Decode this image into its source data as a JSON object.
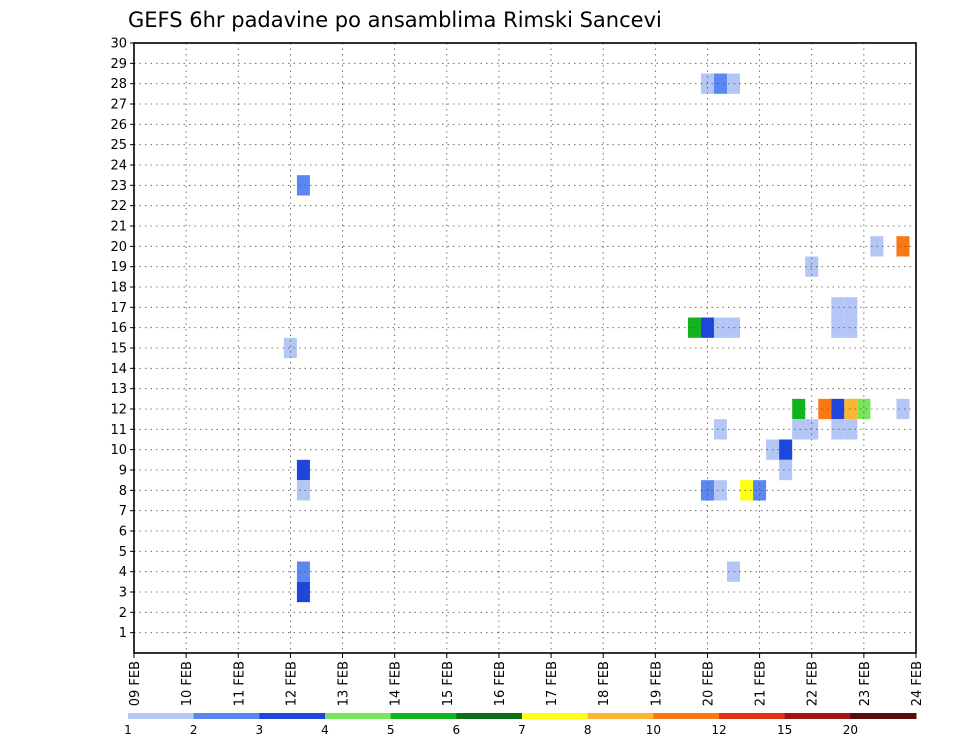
{
  "chart_data": {
    "type": "heatmap",
    "title": "GEFS 6hr padavine po ansamblima Rimski Sancevi",
    "x_tick_labels": [
      "09 FEB",
      "10 FEB",
      "11 FEB",
      "12 FEB",
      "13 FEB",
      "14 FEB",
      "15 FEB",
      "16 FEB",
      "17 FEB",
      "18 FEB",
      "19 FEB",
      "20 FEB",
      "21 FEB",
      "22 FEB",
      "23 FEB",
      "24 FEB"
    ],
    "y_tick_labels": [
      "1",
      "2",
      "3",
      "4",
      "5",
      "6",
      "7",
      "8",
      "9",
      "10",
      "11",
      "12",
      "13",
      "14",
      "15",
      "16",
      "17",
      "18",
      "19",
      "20",
      "21",
      "22",
      "23",
      "24",
      "25",
      "26",
      "27",
      "28",
      "29",
      "30"
    ],
    "xlim_days": [
      9,
      24
    ],
    "ylim": [
      0,
      30
    ],
    "grid": true,
    "legend": {
      "placement": "bottom",
      "colors": [
        "#b3c6f5",
        "#5a87f0",
        "#1e46dc",
        "#78e65a",
        "#12b41e",
        "#0a6e14",
        "#ffff14",
        "#ffb432",
        "#fa7814",
        "#e13214",
        "#a01414",
        "#5a0a0a"
      ],
      "labels": [
        "1",
        "2",
        "3",
        "4",
        "5",
        "6",
        "7",
        "8",
        "10",
        "12",
        "15",
        "20"
      ]
    },
    "cells": [
      {
        "member": 28,
        "day": 20.0,
        "color": "#b3c6f5"
      },
      {
        "member": 28,
        "day": 20.25,
        "color": "#5a87f0"
      },
      {
        "member": 28,
        "day": 20.5,
        "color": "#b3c6f5"
      },
      {
        "member": 23,
        "day": 12.25,
        "color": "#5a87f0"
      },
      {
        "member": 20,
        "day": 23.25,
        "color": "#b3c6f5"
      },
      {
        "member": 20,
        "day": 23.75,
        "color": "#fa7814"
      },
      {
        "member": 19,
        "day": 22.0,
        "color": "#b3c6f5"
      },
      {
        "member": 17,
        "day": 22.5,
        "color": "#b3c6f5"
      },
      {
        "member": 17,
        "day": 22.75,
        "color": "#b3c6f5"
      },
      {
        "member": 16,
        "day": 22.5,
        "color": "#b3c6f5"
      },
      {
        "member": 16,
        "day": 22.75,
        "color": "#b3c6f5"
      },
      {
        "member": 16,
        "day": 19.75,
        "color": "#12b41e"
      },
      {
        "member": 16,
        "day": 20.0,
        "color": "#1e46dc"
      },
      {
        "member": 16,
        "day": 20.25,
        "color": "#b3c6f5"
      },
      {
        "member": 16,
        "day": 20.5,
        "color": "#b3c6f5"
      },
      {
        "member": 15,
        "day": 12.0,
        "color": "#b3c6f5"
      },
      {
        "member": 12,
        "day": 21.75,
        "color": "#12b41e"
      },
      {
        "member": 12,
        "day": 22.25,
        "color": "#fa7814"
      },
      {
        "member": 12,
        "day": 22.5,
        "color": "#1e46dc"
      },
      {
        "member": 12,
        "day": 22.75,
        "color": "#ffb432"
      },
      {
        "member": 12,
        "day": 23.0,
        "color": "#78e65a"
      },
      {
        "member": 12,
        "day": 23.75,
        "color": "#b3c6f5"
      },
      {
        "member": 11,
        "day": 21.75,
        "color": "#b3c6f5"
      },
      {
        "member": 11,
        "day": 22.0,
        "color": "#b3c6f5"
      },
      {
        "member": 11,
        "day": 22.5,
        "color": "#b3c6f5"
      },
      {
        "member": 11,
        "day": 22.75,
        "color": "#b3c6f5"
      },
      {
        "member": 11,
        "day": 20.25,
        "color": "#b3c6f5"
      },
      {
        "member": 10,
        "day": 21.25,
        "color": "#b3c6f5"
      },
      {
        "member": 10,
        "day": 21.5,
        "color": "#1e46dc"
      },
      {
        "member": 9,
        "day": 21.5,
        "color": "#b3c6f5"
      },
      {
        "member": 9,
        "day": 12.25,
        "color": "#1e46dc"
      },
      {
        "member": 8,
        "day": 12.25,
        "color": "#b3c6f5"
      },
      {
        "member": 8,
        "day": 20.0,
        "color": "#5a87f0"
      },
      {
        "member": 8,
        "day": 20.25,
        "color": "#b3c6f5"
      },
      {
        "member": 8,
        "day": 20.75,
        "color": "#ffff14"
      },
      {
        "member": 8,
        "day": 21.0,
        "color": "#5a87f0"
      },
      {
        "member": 4,
        "day": 12.25,
        "color": "#5a87f0"
      },
      {
        "member": 4,
        "day": 20.5,
        "color": "#b3c6f5"
      },
      {
        "member": 3,
        "day": 12.25,
        "color": "#1e46dc"
      }
    ]
  }
}
